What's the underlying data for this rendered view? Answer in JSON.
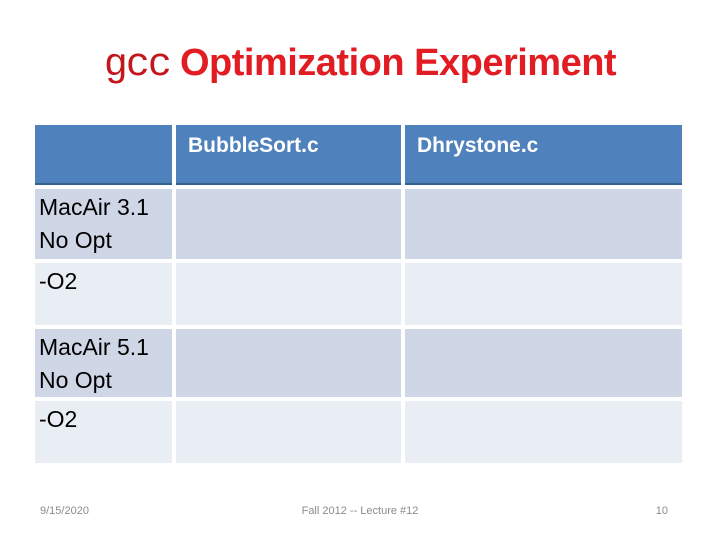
{
  "title": {
    "code": "gcc",
    "text": "Optimization Experiment"
  },
  "table": {
    "headers": [
      "",
      "BubbleSort.c",
      "Dhrystone.c"
    ],
    "rows": [
      {
        "lines": [
          "MacAir 3.1",
          "No Opt"
        ],
        "cells": [
          "",
          ""
        ]
      },
      {
        "lines": [
          "-O2"
        ],
        "cells": [
          "",
          ""
        ]
      },
      {
        "lines": [
          "MacAir 5.1",
          "No Opt"
        ],
        "cells": [
          "",
          ""
        ]
      },
      {
        "lines": [
          "-O2"
        ],
        "cells": [
          "",
          ""
        ]
      }
    ]
  },
  "footer": {
    "date": "9/15/2020",
    "lecture": "Fall 2012 -- Lecture #12",
    "slide_number": "10"
  },
  "colors": {
    "header_bg": "#4f81bd",
    "header_border": "#36618f",
    "band_dark": "#cfd6e6",
    "band_light": "#e9edf4",
    "title_red": "#e11d23",
    "code_red": "#c4161d",
    "footer_gray": "#8b8b8b"
  }
}
